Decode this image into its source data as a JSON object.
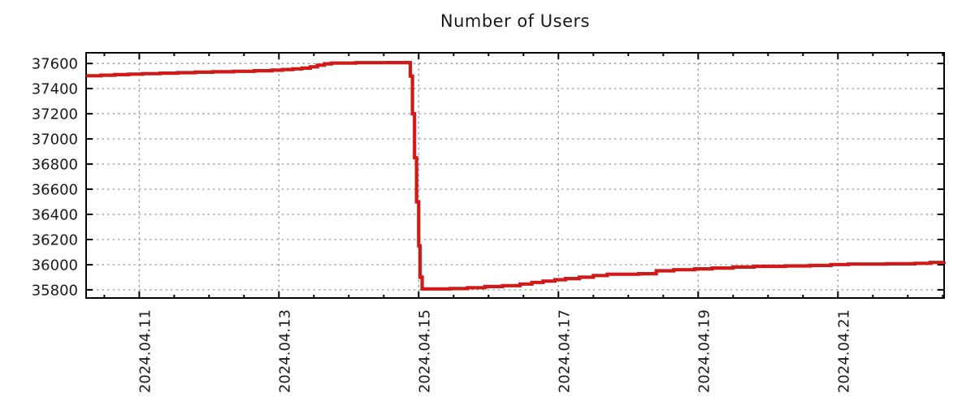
{
  "page": {
    "background": "#ffffff"
  },
  "chart_data": {
    "type": "line",
    "title": "Number of Users",
    "xlabel": "",
    "ylabel": "",
    "x_unit": "day of April 2024 (fractional)",
    "xlim": [
      10.24,
      22.52
    ],
    "ylim": [
      35735,
      37685
    ],
    "grid": "dotted gray lines at labeled ticks, on",
    "legend": "none",
    "line_style": "step-after",
    "x_minor_tick_step": 0.5,
    "colors": {
      "line": "#d01a1a",
      "grid": "#9a9a9a",
      "axis": "#000000",
      "text": "#1a1a1a"
    },
    "x_ticks": [
      {
        "pos": 11,
        "label": "2024.04.11"
      },
      {
        "pos": 13,
        "label": "2024.04.13"
      },
      {
        "pos": 15,
        "label": "2024.04.15"
      },
      {
        "pos": 17,
        "label": "2024.04.17"
      },
      {
        "pos": 19,
        "label": "2024.04.19"
      },
      {
        "pos": 21,
        "label": "2024.04.21"
      }
    ],
    "y_ticks": [
      {
        "pos": 35800,
        "label": "35800"
      },
      {
        "pos": 36000,
        "label": "36000"
      },
      {
        "pos": 36200,
        "label": "36200"
      },
      {
        "pos": 36400,
        "label": "36400"
      },
      {
        "pos": 36600,
        "label": "36600"
      },
      {
        "pos": 36800,
        "label": "36800"
      },
      {
        "pos": 37000,
        "label": "37000"
      },
      {
        "pos": 37200,
        "label": "37200"
      },
      {
        "pos": 37400,
        "label": "37400"
      },
      {
        "pos": 37600,
        "label": "37600"
      }
    ],
    "series": [
      {
        "name": "users",
        "color": "#d01a1a",
        "points": [
          [
            10.24,
            37502
          ],
          [
            10.45,
            37507
          ],
          [
            10.65,
            37511
          ],
          [
            10.85,
            37515
          ],
          [
            11.05,
            37519
          ],
          [
            11.3,
            37523
          ],
          [
            11.55,
            37527
          ],
          [
            11.8,
            37531
          ],
          [
            12.05,
            37534
          ],
          [
            12.35,
            37538
          ],
          [
            12.65,
            37542
          ],
          [
            12.9,
            37547
          ],
          [
            13.05,
            37552
          ],
          [
            13.2,
            37557
          ],
          [
            13.33,
            37563
          ],
          [
            13.45,
            37573
          ],
          [
            13.55,
            37586
          ],
          [
            13.65,
            37597
          ],
          [
            13.75,
            37603
          ],
          [
            14.1,
            37606
          ],
          [
            14.55,
            37607
          ],
          [
            14.88,
            37500
          ],
          [
            14.91,
            37200
          ],
          [
            14.94,
            36850
          ],
          [
            14.97,
            36500
          ],
          [
            15.0,
            36150
          ],
          [
            15.02,
            35900
          ],
          [
            15.05,
            35807
          ],
          [
            15.45,
            35810
          ],
          [
            15.7,
            35817
          ],
          [
            15.95,
            35826
          ],
          [
            16.2,
            35833
          ],
          [
            16.45,
            35846
          ],
          [
            16.62,
            35859
          ],
          [
            16.78,
            35869
          ],
          [
            16.95,
            35880
          ],
          [
            17.1,
            35889
          ],
          [
            17.3,
            35900
          ],
          [
            17.5,
            35914
          ],
          [
            17.7,
            35924
          ],
          [
            18.15,
            35928
          ],
          [
            18.4,
            35951
          ],
          [
            18.65,
            35960
          ],
          [
            18.95,
            35967
          ],
          [
            19.2,
            35973
          ],
          [
            19.5,
            35981
          ],
          [
            19.8,
            35987
          ],
          [
            20.25,
            35990
          ],
          [
            20.6,
            35994
          ],
          [
            20.9,
            36001
          ],
          [
            21.15,
            36005
          ],
          [
            21.7,
            36007
          ],
          [
            22.1,
            36011
          ],
          [
            22.32,
            36018
          ],
          [
            22.52,
            36022
          ]
        ]
      }
    ]
  }
}
